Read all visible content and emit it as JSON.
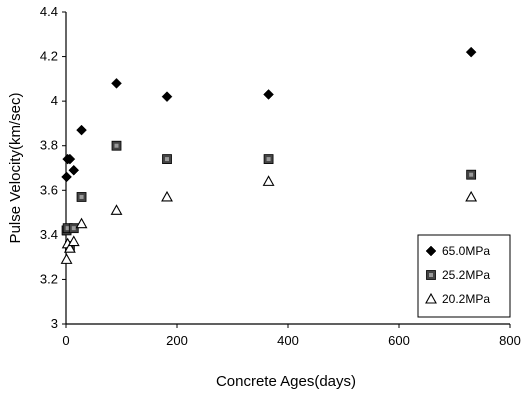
{
  "chart_data": {
    "type": "scatter",
    "xlabel": "Concrete Ages(days)",
    "ylabel": "Pulse Velocity(km/sec)",
    "xlim": [
      0,
      800
    ],
    "ylim": [
      3,
      4.4
    ],
    "x_ticks": [
      0,
      200,
      400,
      600,
      800
    ],
    "y_ticks": [
      3,
      3.2,
      3.4,
      3.6,
      3.8,
      4,
      4.2,
      4.4
    ],
    "x_tick_labels": [
      "0",
      "200",
      "400",
      "600",
      "800"
    ],
    "y_tick_labels": [
      "3",
      "3.2",
      "3.4",
      "3.6",
      "3.8",
      "4",
      "4.2",
      "4.4"
    ],
    "grid": false,
    "legend_position": "bottom-right",
    "series": [
      {
        "name": "65.0MPa",
        "marker": "diamond",
        "color": "#000000",
        "points": [
          [
            1,
            3.66
          ],
          [
            3,
            3.74
          ],
          [
            7,
            3.74
          ],
          [
            14,
            3.69
          ],
          [
            28,
            3.87
          ],
          [
            91,
            4.08
          ],
          [
            182,
            4.02
          ],
          [
            365,
            4.03
          ],
          [
            730,
            4.22
          ]
        ]
      },
      {
        "name": "25.2MPa",
        "marker": "square",
        "color": "#444444",
        "points": [
          [
            1,
            3.42
          ],
          [
            3,
            3.43
          ],
          [
            7,
            3.35
          ],
          [
            14,
            3.43
          ],
          [
            28,
            3.57
          ],
          [
            91,
            3.8
          ],
          [
            182,
            3.74
          ],
          [
            365,
            3.74
          ],
          [
            730,
            3.67
          ]
        ]
      },
      {
        "name": "20.2MPa",
        "marker": "triangle",
        "color": "#000000",
        "points": [
          [
            1,
            3.29
          ],
          [
            3,
            3.36
          ],
          [
            7,
            3.34
          ],
          [
            14,
            3.37
          ],
          [
            28,
            3.45
          ],
          [
            91,
            3.51
          ],
          [
            182,
            3.57
          ],
          [
            365,
            3.64
          ],
          [
            730,
            3.57
          ]
        ]
      }
    ],
    "legend_labels": [
      "65.0MPa",
      "25.2MPa",
      "20.2MPa"
    ]
  }
}
